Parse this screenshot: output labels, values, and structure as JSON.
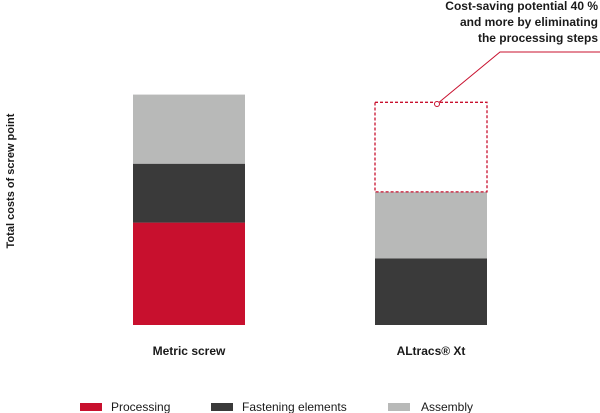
{
  "chart_data": {
    "type": "bar",
    "stacked": true,
    "categories": [
      "Metric screw",
      "ALtracs® Xt"
    ],
    "series": [
      {
        "name": "Processing",
        "color": "#c8102e",
        "values": [
          40,
          0
        ]
      },
      {
        "name": "Fastening elements",
        "color": "#3a3a3a",
        "values": [
          23,
          26
        ]
      },
      {
        "name": "Assembly",
        "color": "#b8b9b8",
        "values": [
          27,
          26
        ]
      }
    ],
    "ylabel": "Total costs of screw point",
    "ylim": [
      0,
      100
    ],
    "grid": false,
    "legend_position": "bottom",
    "annotation": {
      "lines": [
        "Cost-saving potential 40 %",
        "and more by eliminating",
        "the processing steps"
      ],
      "target_category": "ALtracs® Xt",
      "savings_value": 35,
      "box_color": "#c8102e"
    }
  }
}
